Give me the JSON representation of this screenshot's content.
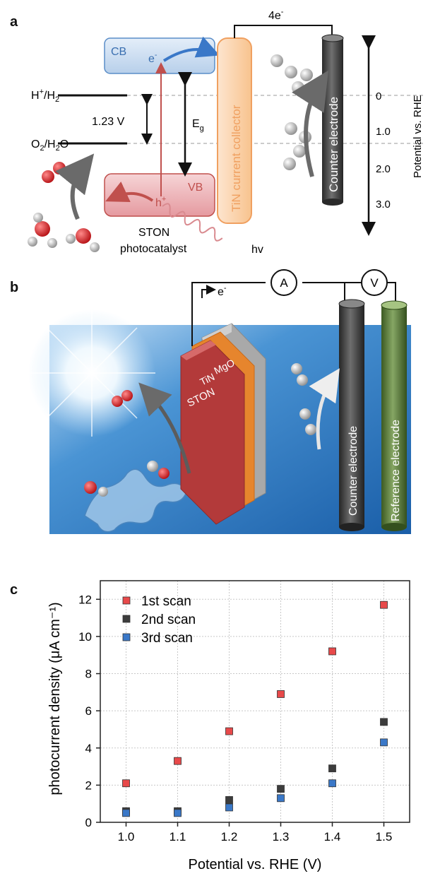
{
  "panel_a": {
    "letter": "a",
    "cb_label": "CB",
    "vb_label": "VB",
    "electron": "e",
    "electron_sup": "-",
    "hole": "h",
    "hole_sup": "+",
    "h_couple_main": "H",
    "h_couple_sup": "+",
    "h_couple_rest": "/H",
    "h_couple_sub": "2",
    "o_couple_main": "O",
    "o_couple_sub1": "2",
    "o_couple_mid": "/H",
    "o_couple_sub2": "2",
    "o_couple_rest": "O",
    "gap_voltage": "1.23 V",
    "eg_main": "E",
    "eg_sub": "g",
    "current_collector": "TiN current collector",
    "counter_electrode": "Counter electrode",
    "four_e_main": "4e",
    "four_e_sup": "-",
    "photocatalyst_line1": "STON",
    "photocatalyst_line2": "photocatalyst",
    "hv": "hv",
    "potential_axis": "Potential vs. RHE",
    "potential_ticks": [
      "0",
      "1.0",
      "2.0",
      "3.0"
    ]
  },
  "panel_b": {
    "letter": "b",
    "layers": [
      "MgO",
      "TiN",
      "STON"
    ],
    "electron_main": "e",
    "electron_sup": "-",
    "ammeter": "A",
    "voltmeter": "V",
    "counter_electrode": "Counter electrode",
    "reference_electrode": "Reference electrode"
  },
  "panel_c": {
    "letter": "c"
  },
  "chart_data": {
    "type": "scatter",
    "xlabel": "Potential vs. RHE (V)",
    "ylabel": "photocurrent density (μA cm⁻¹)",
    "xlim": [
      0.95,
      1.55
    ],
    "ylim": [
      0,
      13
    ],
    "xticks": [
      "1.0",
      "1.1",
      "1.2",
      "1.3",
      "1.4",
      "1.5"
    ],
    "yticks": [
      "0",
      "2",
      "4",
      "6",
      "8",
      "10",
      "12"
    ],
    "grid": true,
    "legend_position": "top-left",
    "x": [
      1.0,
      1.1,
      1.2,
      1.3,
      1.4,
      1.5
    ],
    "series": [
      {
        "name": "1st scan",
        "color": "#e8494a",
        "values": [
          2.1,
          3.3,
          4.9,
          6.9,
          9.2,
          11.7
        ]
      },
      {
        "name": "2nd scan",
        "color": "#3c3c3c",
        "values": [
          0.6,
          0.6,
          1.2,
          1.8,
          2.9,
          5.4
        ]
      },
      {
        "name": "3rd scan",
        "color": "#3a78c8",
        "values": [
          0.5,
          0.5,
          0.8,
          1.3,
          2.1,
          4.3
        ]
      }
    ]
  }
}
